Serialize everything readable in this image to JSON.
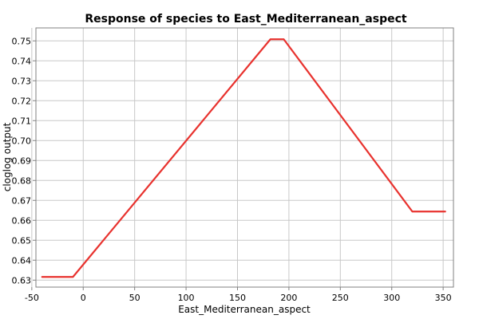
{
  "chart_data": {
    "type": "line",
    "title": "Response of species to East_Mediterranean_aspect",
    "xlabel": "East_Mediterranean_aspect",
    "ylabel": "cloglog output",
    "xlim": [
      -46,
      360
    ],
    "ylim": [
      0.6265,
      0.7565
    ],
    "x_ticks": [
      -50,
      0,
      50,
      100,
      150,
      200,
      250,
      300,
      350
    ],
    "y_ticks": [
      0.63,
      0.64,
      0.65,
      0.66,
      0.67,
      0.68,
      0.69,
      0.7,
      0.71,
      0.72,
      0.73,
      0.74,
      0.75
    ],
    "x_tick_labels": [
      "-50",
      "0",
      "50",
      "100",
      "150",
      "200",
      "250",
      "300",
      "350"
    ],
    "y_tick_labels": [
      "0.63",
      "0.64",
      "0.65",
      "0.66",
      "0.67",
      "0.68",
      "0.69",
      "0.70",
      "0.71",
      "0.72",
      "0.73",
      "0.74",
      "0.75"
    ],
    "grid": true,
    "series": [
      {
        "color": "#e8322e",
        "x": [
          -40,
          -10,
          182,
          195,
          320,
          352
        ],
        "y": [
          0.6316,
          0.6316,
          0.7508,
          0.7508,
          0.6644,
          0.6644
        ]
      }
    ]
  }
}
